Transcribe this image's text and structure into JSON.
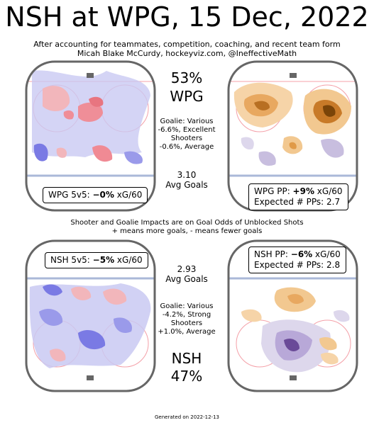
{
  "title": "NSH at WPG, 15 Dec, 2022",
  "subtitle_line1": "After accounting for teammates, competition, coaching, and recent team form",
  "subtitle_line2": "Micah Blake McCurdy, hockeyviz.com, @IneffectiveMath",
  "home": {
    "pct": "53%",
    "team": "WPG",
    "goalie_lines": [
      "Goalie: Various",
      "-6.6%, Excellent",
      "Shooters",
      "-0.6%, Average"
    ],
    "avg_goals": "3.10",
    "avg_goals_label": "Avg Goals",
    "ev_prefix": "WPG 5v5: ",
    "ev_value": "−0%",
    "ev_suffix": " xG/60",
    "pp_prefix": "WPG PP: ",
    "pp_value": "+9%",
    "pp_suffix": " xG/60",
    "pp_expected": "Expected # PPs: 2.7"
  },
  "away": {
    "pct": "47%",
    "team": "NSH",
    "goalie_lines": [
      "Goalie: Various",
      "-4.2%, Strong",
      "Shooters",
      "+1.0%, Average"
    ],
    "avg_goals": "2.93",
    "avg_goals_label": "Avg Goals",
    "ev_prefix": "NSH 5v5: ",
    "ev_value": "−5%",
    "ev_suffix": " xG/60",
    "pp_prefix": "NSH PP: ",
    "pp_value": "−6%",
    "pp_suffix": " xG/60",
    "pp_expected": "Expected # PPs: 2.8"
  },
  "note_line1": "Shooter and Goalie Impacts are on Goal Odds of Unblocked Shots",
  "note_line2": "+ means more goals, - means fewer goals",
  "footer": "Generated on 2022-12-13",
  "colors": {
    "rink_border": "#666666",
    "blue_line": "#aab8d8",
    "red_line": "#f4a0a8",
    "ev_positive": "#f08a94",
    "ev_negative": "#6f6fe0",
    "pp_positive": "#c87a28",
    "pp_negative": "#8a7ab8"
  }
}
